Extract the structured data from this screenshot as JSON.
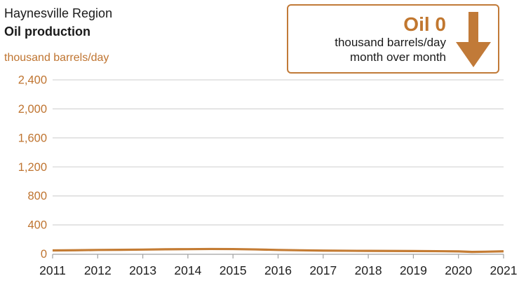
{
  "header": {
    "region": "Haynesville Region",
    "metric": "Oil production",
    "units": "thousand barrels/day"
  },
  "callout": {
    "headline": "Oil 0",
    "subline1": "thousand barrels/day",
    "subline2": "month over month",
    "direction": "down",
    "arrow_icon": "down-arrow-icon",
    "accent_color": "#c1772f"
  },
  "chart_data": {
    "type": "line",
    "title": "Haynesville Region Oil production",
    "xlabel": "",
    "ylabel": "thousand barrels/day",
    "xlim": [
      2011,
      2021
    ],
    "ylim": [
      0,
      2400
    ],
    "grid": true,
    "legend": "none",
    "xticks": [
      2011,
      2012,
      2013,
      2014,
      2015,
      2016,
      2017,
      2018,
      2019,
      2020,
      2021
    ],
    "ytick_values": [
      0,
      400,
      800,
      1200,
      1600,
      2000,
      2400
    ],
    "ytick_labels": [
      "0",
      "400",
      "800",
      "1,200",
      "1,600",
      "2,000",
      "2,400"
    ],
    "series": [
      {
        "name": "Haynesville oil production",
        "x": [
          2011.0,
          2011.5,
          2012.0,
          2012.5,
          2013.0,
          2013.5,
          2014.0,
          2014.5,
          2015.0,
          2015.5,
          2016.0,
          2016.5,
          2017.0,
          2017.5,
          2018.0,
          2018.5,
          2019.0,
          2019.5,
          2020.0,
          2020.3,
          2020.6,
          2021.0
        ],
        "values": [
          48,
          51,
          55,
          57,
          60,
          64,
          66,
          68,
          67,
          62,
          55,
          50,
          46,
          44,
          42,
          41,
          40,
          38,
          35,
          28,
          31,
          36
        ]
      }
    ],
    "colors": {
      "line": "#c47c34",
      "ytick_text": "#bf7430",
      "xtick_text": "#1f1f1f",
      "gridline": "#d8d8d8",
      "axis": "#a0a0a0"
    }
  }
}
